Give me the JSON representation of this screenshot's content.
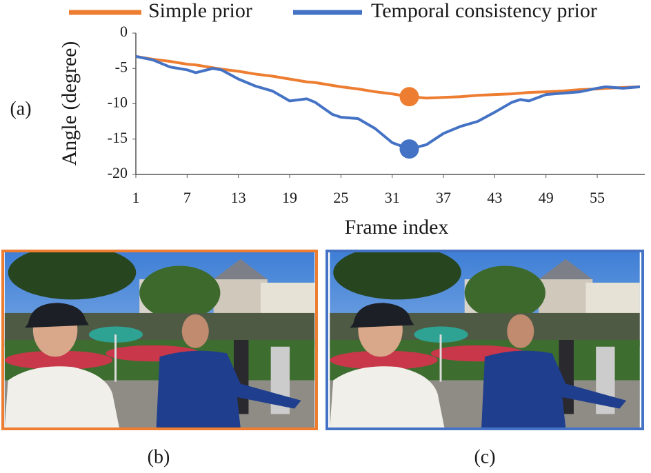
{
  "chart_data": {
    "type": "line",
    "y_label": "Angle (degree)",
    "x_label": "Frame index",
    "x": [
      1,
      3,
      5,
      7,
      8,
      10,
      11,
      13,
      15,
      17,
      19,
      21,
      22,
      24,
      25,
      27,
      29,
      31,
      33,
      35,
      37,
      39,
      41,
      43,
      45,
      46,
      47,
      49,
      51,
      53,
      55,
      56,
      58,
      60
    ],
    "series": [
      {
        "name": "Simple prior",
        "color": "#ed7d31",
        "values": [
          -3.3,
          -3.7,
          -4.0,
          -4.4,
          -4.5,
          -4.9,
          -5.1,
          -5.4,
          -5.8,
          -6.1,
          -6.5,
          -6.9,
          -7.0,
          -7.4,
          -7.6,
          -7.9,
          -8.3,
          -8.6,
          -9.0,
          -9.2,
          -9.1,
          -9.0,
          -8.8,
          -8.7,
          -8.6,
          -8.5,
          -8.4,
          -8.3,
          -8.2,
          -8.0,
          -7.9,
          -7.8,
          -7.7,
          -7.6
        ]
      },
      {
        "name": "Temporal consistency prior",
        "color": "#4472c4",
        "values": [
          -3.3,
          -3.8,
          -4.8,
          -5.2,
          -5.6,
          -5.0,
          -5.2,
          -6.5,
          -7.5,
          -8.2,
          -9.6,
          -9.3,
          -9.8,
          -11.5,
          -11.9,
          -12.1,
          -13.5,
          -15.5,
          -16.4,
          -15.8,
          -14.2,
          -13.2,
          -12.5,
          -11.2,
          -9.8,
          -9.4,
          -9.6,
          -8.7,
          -8.5,
          -8.3,
          -7.8,
          -7.6,
          -7.8,
          -7.6
        ]
      }
    ],
    "highlight_x": 33,
    "xlim": [
      1,
      60
    ],
    "xticks": [
      1,
      7,
      13,
      19,
      25,
      31,
      37,
      43,
      49,
      55
    ],
    "ylim": [
      -20,
      0
    ],
    "yticks": [
      0,
      -5,
      -10,
      -15,
      -20
    ],
    "legend": "top"
  },
  "panel_labels": {
    "a": "(a)",
    "b": "(b)",
    "c": "(c)"
  },
  "frames": {
    "b_color": "#ed7d31",
    "c_color": "#4472c4"
  }
}
